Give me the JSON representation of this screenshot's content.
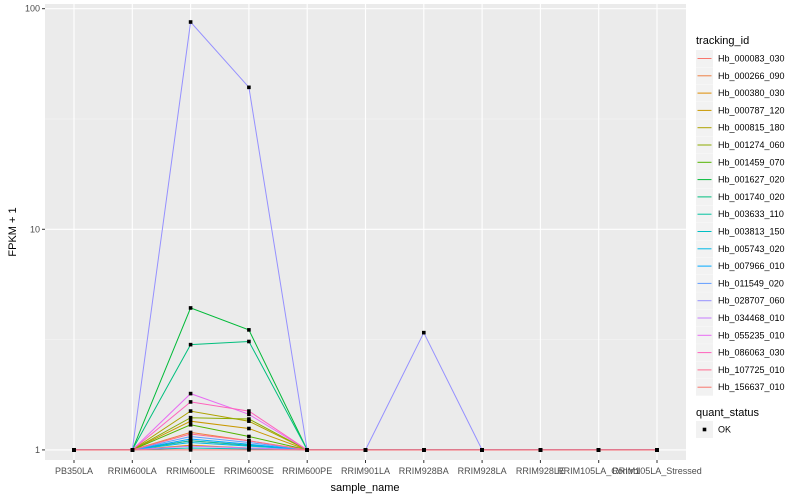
{
  "chart_data": {
    "type": "line",
    "xlabel": "sample_name",
    "ylabel": "FPKM + 1",
    "y_scale": "log10",
    "ylim": [
      0.9,
      105
    ],
    "y_ticks": [
      1,
      10,
      100
    ],
    "y_tick_labels": [
      "1",
      "10",
      "100"
    ],
    "grid": true,
    "legend_position": "right",
    "categories": [
      "PB350LA",
      "RRIM600LA",
      "RRIM600LE",
      "RRIM600SE",
      "RRIM600PE",
      "RRIM901LA",
      "RRIM928BA",
      "RRIM928LA",
      "RRIM928LE",
      "RRIM105LA_Control",
      "RRIM105LA_Stressed"
    ],
    "legend": {
      "color_title": "tracking_id",
      "shape_title": "quant_status",
      "shape_items": [
        "OK"
      ]
    },
    "series": [
      {
        "name": "Hb_000083_030",
        "color": "#F8766D",
        "values": [
          1,
          1,
          1.1,
          1.05,
          1,
          1,
          1,
          1,
          1,
          1,
          1
        ]
      },
      {
        "name": "Hb_000266_090",
        "color": "#EE8043",
        "values": [
          1,
          1,
          1.2,
          1.1,
          1,
          1,
          1,
          1,
          1,
          1,
          1
        ]
      },
      {
        "name": "Hb_000380_030",
        "color": "#DE8C00",
        "values": [
          1,
          1,
          1.05,
          1.02,
          1,
          1,
          1,
          1,
          1,
          1,
          1
        ]
      },
      {
        "name": "Hb_000787_120",
        "color": "#C99800",
        "values": [
          1,
          1,
          1.35,
          1.25,
          1,
          1,
          1,
          1,
          1,
          1,
          1
        ]
      },
      {
        "name": "Hb_000815_180",
        "color": "#AEA200",
        "values": [
          1,
          1,
          1.5,
          1.35,
          1,
          1,
          1,
          1,
          1,
          1,
          1
        ]
      },
      {
        "name": "Hb_001274_060",
        "color": "#8CAB00",
        "values": [
          1,
          1,
          1.4,
          1.38,
          1,
          1,
          1,
          1,
          1,
          1,
          1
        ]
      },
      {
        "name": "Hb_001459_070",
        "color": "#53B400",
        "values": [
          1,
          1,
          1.3,
          1.15,
          1,
          1,
          1,
          1,
          1,
          1,
          1
        ]
      },
      {
        "name": "Hb_001627_020",
        "color": "#00BA38",
        "values": [
          1,
          1,
          4.4,
          3.5,
          1,
          1,
          1,
          1,
          1,
          1,
          1
        ]
      },
      {
        "name": "Hb_001740_020",
        "color": "#00BF7D",
        "values": [
          1,
          1,
          3.0,
          3.1,
          1,
          1,
          1,
          1,
          1,
          1,
          1
        ]
      },
      {
        "name": "Hb_003633_110",
        "color": "#00C19F",
        "values": [
          1,
          1,
          1.1,
          1.05,
          1,
          1,
          1,
          1,
          1,
          1,
          1
        ]
      },
      {
        "name": "Hb_003813_150",
        "color": "#00BFC4",
        "values": [
          1,
          1,
          1.02,
          1.01,
          1,
          1,
          1,
          1,
          1,
          1,
          1
        ]
      },
      {
        "name": "Hb_005743_020",
        "color": "#00B8E7",
        "values": [
          1,
          1,
          1.08,
          1.04,
          1,
          1,
          1,
          1,
          1,
          1,
          1
        ]
      },
      {
        "name": "Hb_007966_010",
        "color": "#00A9FF",
        "values": [
          1,
          1,
          1.12,
          1.06,
          1,
          1,
          1,
          1,
          1,
          1,
          1
        ]
      },
      {
        "name": "Hb_011549_020",
        "color": "#619CFF",
        "values": [
          1,
          1,
          1.15,
          1.08,
          1,
          1,
          1,
          1,
          1,
          1,
          1
        ]
      },
      {
        "name": "Hb_028707_060",
        "color": "#9590FF",
        "values": [
          1,
          1,
          87,
          44,
          1,
          1,
          3.4,
          1,
          1,
          1,
          1
        ]
      },
      {
        "name": "Hb_034468_010",
        "color": "#C77CFF",
        "values": [
          1,
          1,
          1.04,
          1.02,
          1,
          1,
          1,
          1,
          1,
          1,
          1
        ]
      },
      {
        "name": "Hb_055235_010",
        "color": "#E76BF3",
        "values": [
          1,
          1,
          1.8,
          1.45,
          1,
          1,
          1,
          1,
          1,
          1,
          1
        ]
      },
      {
        "name": "Hb_086063_030",
        "color": "#FF62BC",
        "values": [
          1,
          1,
          1.65,
          1.5,
          1,
          1,
          1,
          1,
          1,
          1,
          1
        ]
      },
      {
        "name": "Hb_107725_010",
        "color": "#FF6C90",
        "values": [
          1,
          1,
          1.18,
          1.1,
          1,
          1,
          1,
          1,
          1,
          1,
          1
        ]
      },
      {
        "name": "Hb_156637_010",
        "color": "#F8766D",
        "values": [
          1,
          1,
          1.0,
          1.0,
          1,
          1,
          1,
          1,
          1,
          1,
          1
        ]
      }
    ]
  }
}
